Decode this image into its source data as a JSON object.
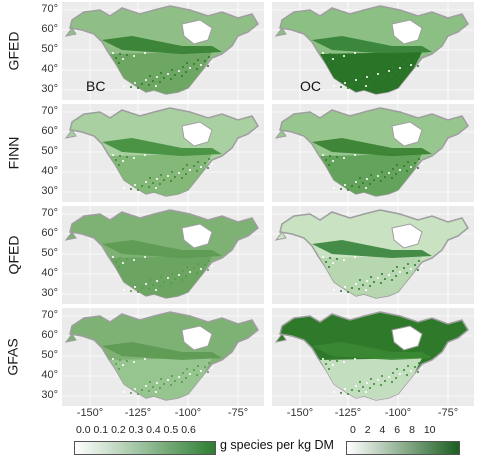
{
  "rows": [
    "GFED",
    "FINN",
    "QFED",
    "GFAS"
  ],
  "panel_tags": {
    "left": "BC",
    "right": "OC"
  },
  "y_ticks": [
    "70°",
    "60°",
    "50°",
    "40°",
    "30°"
  ],
  "x_ticks": [
    "-150°",
    "-125°",
    "-100°",
    "-75°"
  ],
  "legend_left": {
    "ticks": [
      "0.0",
      "0.1",
      "0.2",
      "0.3",
      "0.4",
      "0.5",
      "0.6"
    ],
    "title": "g species per kg DM",
    "colors": [
      "#ffffff",
      "#2e7d32"
    ]
  },
  "legend_right": {
    "ticks": [
      "0",
      "2",
      "4",
      "6",
      "8",
      "10"
    ],
    "colors": [
      "#ffffff",
      "#1b5e20"
    ]
  },
  "colors": {
    "panel_bg": "#ebebeb",
    "grid": "#ffffff",
    "ocean_outline": "#9e9e9e"
  }
}
